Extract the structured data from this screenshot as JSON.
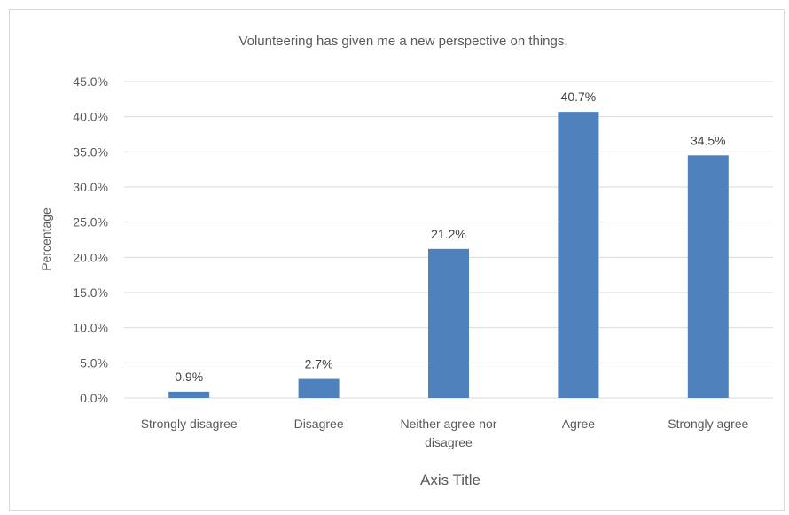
{
  "chart_data": {
    "type": "bar",
    "title": "Volunteering has given me a new perspective on things.",
    "xlabel": "Axis Title",
    "ylabel": "Percentage",
    "categories": [
      "Strongly disagree",
      "Disagree",
      "Neither agree nor disagree",
      "Agree",
      "Strongly agree"
    ],
    "category_lines": [
      [
        "Strongly disagree"
      ],
      [
        "Disagree"
      ],
      [
        "Neither agree nor",
        "disagree"
      ],
      [
        "Agree"
      ],
      [
        "Strongly agree"
      ]
    ],
    "values": [
      0.9,
      2.7,
      21.2,
      40.7,
      34.5
    ],
    "data_labels": [
      "0.9%",
      "2.7%",
      "21.2%",
      "40.7%",
      "34.5%"
    ],
    "y_ticks": [
      "0.0%",
      "5.0%",
      "10.0%",
      "15.0%",
      "20.0%",
      "25.0%",
      "30.0%",
      "35.0%",
      "40.0%",
      "45.0%"
    ],
    "ylim": [
      0,
      45
    ],
    "grid": true,
    "legend": "none",
    "bar_color": "#4f81bd",
    "grid_color": "#d9d9d9"
  }
}
